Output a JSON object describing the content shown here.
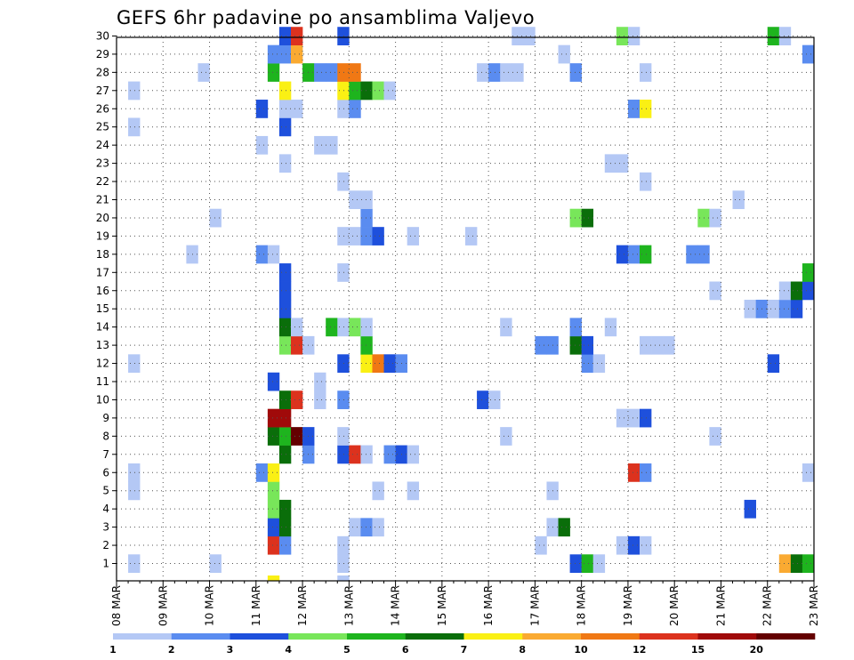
{
  "chart_data": {
    "type": "heatmap",
    "title": "GEFS 6hr padavine po ansamblima Valjevo",
    "xlabel": "",
    "ylabel": "",
    "x_ticks": [
      "08 MAR",
      "09 MAR",
      "10 MAR",
      "11 MAR",
      "12 MAR",
      "13 MAR",
      "14 MAR",
      "15 MAR",
      "16 MAR",
      "17 MAR",
      "18 MAR",
      "19 MAR",
      "20 MAR",
      "21 MAR",
      "22 MAR",
      "23 MAR"
    ],
    "y_ticks": [
      "1",
      "2",
      "3",
      "4",
      "5",
      "6",
      "7",
      "8",
      "9",
      "10",
      "11",
      "12",
      "13",
      "14",
      "15",
      "16",
      "17",
      "18",
      "19",
      "20",
      "21",
      "22",
      "23",
      "24",
      "25",
      "26",
      "27",
      "28",
      "29",
      "30"
    ],
    "x_range": [
      0,
      60
    ],
    "y_range": [
      0.5,
      30.5
    ],
    "x_unit": "6-hour steps from 08 MAR 00Z",
    "grid": true,
    "colorbar": {
      "placement": "bottom",
      "labels": [
        "1",
        "2",
        "3",
        "4",
        "5",
        "6",
        "7",
        "8",
        "10",
        "12",
        "15",
        "20"
      ],
      "colors": [
        "#b4c8f5",
        "#5a8cf0",
        "#1e50dc",
        "#78e65a",
        "#1eb41e",
        "#0a6e0a",
        "#faf014",
        "#faaa32",
        "#f07814",
        "#dc321e",
        "#a00a0a",
        "#640000"
      ]
    },
    "cells": [
      [
        1,
        1,
        1
      ],
      [
        1,
        8,
        1
      ],
      [
        1,
        19,
        1
      ],
      [
        1,
        39,
        3
      ],
      [
        1,
        40,
        5
      ],
      [
        1,
        41,
        1
      ],
      [
        1,
        57,
        8
      ],
      [
        1,
        58,
        6
      ],
      [
        1,
        59,
        5
      ],
      [
        2,
        13,
        10
      ],
      [
        2,
        14,
        2
      ],
      [
        2,
        19,
        1
      ],
      [
        2,
        36,
        1
      ],
      [
        2,
        43,
        1
      ],
      [
        2,
        44,
        3
      ],
      [
        2,
        45,
        1
      ],
      [
        3,
        13,
        3
      ],
      [
        3,
        14,
        6
      ],
      [
        3,
        20,
        1
      ],
      [
        3,
        21,
        2
      ],
      [
        3,
        22,
        1
      ],
      [
        3,
        37,
        1
      ],
      [
        3,
        38,
        6
      ],
      [
        4,
        13,
        4
      ],
      [
        4,
        14,
        6
      ],
      [
        4,
        54,
        3
      ],
      [
        5,
        1,
        1
      ],
      [
        5,
        13,
        4
      ],
      [
        5,
        22,
        1
      ],
      [
        5,
        25,
        1
      ],
      [
        5,
        37,
        1
      ],
      [
        6,
        1,
        1
      ],
      [
        6,
        12,
        2
      ],
      [
        6,
        13,
        7
      ],
      [
        6,
        44,
        10
      ],
      [
        6,
        45,
        2
      ],
      [
        6,
        59,
        1
      ],
      [
        7,
        14,
        6
      ],
      [
        7,
        16,
        2
      ],
      [
        7,
        19,
        3
      ],
      [
        7,
        20,
        10
      ],
      [
        7,
        21,
        1
      ],
      [
        7,
        23,
        2
      ],
      [
        7,
        24,
        3
      ],
      [
        7,
        25,
        1
      ],
      [
        8,
        13,
        6
      ],
      [
        8,
        14,
        5
      ],
      [
        8,
        15,
        12
      ],
      [
        8,
        16,
        3
      ],
      [
        8,
        19,
        1
      ],
      [
        8,
        33,
        1
      ],
      [
        8,
        51,
        1
      ],
      [
        9,
        13,
        11
      ],
      [
        9,
        14,
        11
      ],
      [
        9,
        43,
        1
      ],
      [
        9,
        44,
        1
      ],
      [
        9,
        45,
        3
      ],
      [
        10,
        14,
        6
      ],
      [
        10,
        15,
        10
      ],
      [
        10,
        17,
        1
      ],
      [
        10,
        19,
        2
      ],
      [
        10,
        31,
        3
      ],
      [
        10,
        32,
        1
      ],
      [
        11,
        13,
        3
      ],
      [
        11,
        17,
        1
      ],
      [
        12,
        1,
        1
      ],
      [
        12,
        19,
        3
      ],
      [
        12,
        21,
        7
      ],
      [
        12,
        22,
        9
      ],
      [
        12,
        23,
        3
      ],
      [
        12,
        24,
        2
      ],
      [
        12,
        40,
        2
      ],
      [
        12,
        41,
        1
      ],
      [
        12,
        56,
        3
      ],
      [
        13,
        14,
        4
      ],
      [
        13,
        15,
        10
      ],
      [
        13,
        16,
        1
      ],
      [
        13,
        21,
        5
      ],
      [
        13,
        36,
        2
      ],
      [
        13,
        37,
        2
      ],
      [
        13,
        39,
        6
      ],
      [
        13,
        40,
        3
      ],
      [
        13,
        45,
        1
      ],
      [
        13,
        46,
        1
      ],
      [
        13,
        47,
        1
      ],
      [
        14,
        14,
        6
      ],
      [
        14,
        15,
        1
      ],
      [
        14,
        18,
        5
      ],
      [
        14,
        19,
        1
      ],
      [
        14,
        20,
        4
      ],
      [
        14,
        21,
        1
      ],
      [
        14,
        33,
        1
      ],
      [
        14,
        39,
        2
      ],
      [
        14,
        42,
        1
      ],
      [
        15,
        14,
        3
      ],
      [
        15,
        54,
        1
      ],
      [
        15,
        55,
        2
      ],
      [
        15,
        56,
        1
      ],
      [
        15,
        57,
        2
      ],
      [
        15,
        58,
        3
      ],
      [
        16,
        14,
        3
      ],
      [
        16,
        51,
        1
      ],
      [
        16,
        57,
        1
      ],
      [
        16,
        58,
        6
      ],
      [
        16,
        59,
        3
      ],
      [
        17,
        14,
        3
      ],
      [
        17,
        19,
        1
      ],
      [
        17,
        59,
        5
      ],
      [
        18,
        6,
        1
      ],
      [
        18,
        12,
        2
      ],
      [
        18,
        13,
        1
      ],
      [
        18,
        43,
        3
      ],
      [
        18,
        44,
        2
      ],
      [
        18,
        45,
        5
      ],
      [
        18,
        49,
        2
      ],
      [
        18,
        50,
        2
      ],
      [
        19,
        19,
        1
      ],
      [
        19,
        20,
        1
      ],
      [
        19,
        21,
        2
      ],
      [
        19,
        22,
        3
      ],
      [
        19,
        25,
        1
      ],
      [
        19,
        30,
        1
      ],
      [
        20,
        8,
        1
      ],
      [
        20,
        21,
        2
      ],
      [
        20,
        39,
        4
      ],
      [
        20,
        40,
        6
      ],
      [
        20,
        50,
        4
      ],
      [
        20,
        51,
        1
      ],
      [
        21,
        20,
        1
      ],
      [
        21,
        21,
        1
      ],
      [
        21,
        53,
        1
      ],
      [
        22,
        19,
        1
      ],
      [
        22,
        45,
        1
      ],
      [
        23,
        14,
        1
      ],
      [
        23,
        42,
        1
      ],
      [
        23,
        43,
        1
      ],
      [
        24,
        12,
        1
      ],
      [
        24,
        17,
        1
      ],
      [
        24,
        18,
        1
      ],
      [
        25,
        1,
        1
      ],
      [
        25,
        14,
        3
      ],
      [
        26,
        12,
        3
      ],
      [
        26,
        14,
        1
      ],
      [
        26,
        15,
        1
      ],
      [
        26,
        19,
        1
      ],
      [
        26,
        20,
        2
      ],
      [
        26,
        44,
        2
      ],
      [
        26,
        45,
        7
      ],
      [
        27,
        1,
        1
      ],
      [
        27,
        14,
        7
      ],
      [
        27,
        19,
        7
      ],
      [
        27,
        20,
        5
      ],
      [
        27,
        21,
        6
      ],
      [
        27,
        22,
        4
      ],
      [
        27,
        23,
        1
      ],
      [
        28,
        7,
        1
      ],
      [
        28,
        13,
        5
      ],
      [
        28,
        16,
        5
      ],
      [
        28,
        17,
        2
      ],
      [
        28,
        18,
        2
      ],
      [
        28,
        19,
        9
      ],
      [
        28,
        20,
        9
      ],
      [
        28,
        31,
        1
      ],
      [
        28,
        32,
        2
      ],
      [
        28,
        33,
        1
      ],
      [
        28,
        34,
        1
      ],
      [
        28,
        39,
        2
      ],
      [
        28,
        45,
        1
      ],
      [
        29,
        13,
        2
      ],
      [
        29,
        14,
        2
      ],
      [
        29,
        15,
        8
      ],
      [
        29,
        38,
        1
      ],
      [
        29,
        59,
        2
      ],
      [
        30,
        14,
        3
      ],
      [
        30,
        15,
        10
      ],
      [
        30,
        19,
        3
      ],
      [
        30,
        34,
        1
      ],
      [
        30,
        35,
        1
      ],
      [
        30,
        43,
        4
      ],
      [
        30,
        44,
        1
      ],
      [
        30,
        56,
        5
      ],
      [
        30,
        57,
        1
      ]
    ],
    "bottom_marks": [
      [
        13,
        7
      ],
      [
        19,
        1
      ]
    ]
  }
}
